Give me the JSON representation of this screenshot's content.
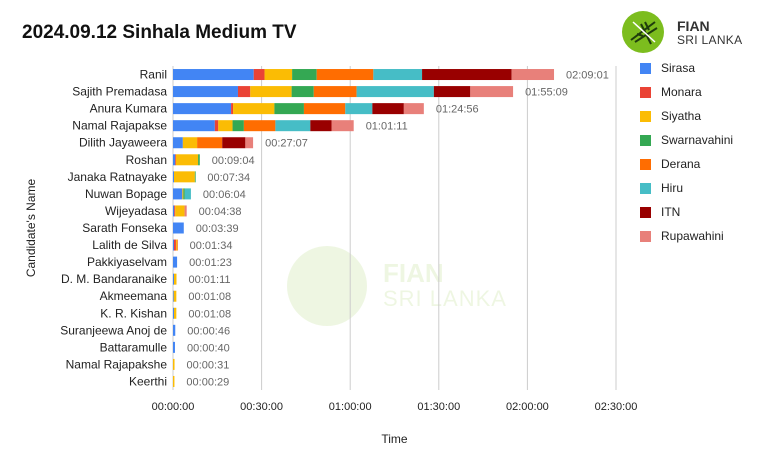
{
  "title": "2024.09.12 Sinhala Medium TV",
  "logo": {
    "line1": "FIAN",
    "line2": "SRI LANKA"
  },
  "watermark": {
    "line1": "FIAN",
    "line2": "SRI LANKA"
  },
  "chart_data": {
    "type": "bar",
    "orientation": "horizontal",
    "stacked": true,
    "title": "2024.09.12 Sinhala Medium TV",
    "xlabel": "Time",
    "ylabel": "Candidate's Name",
    "xlim": [
      0,
      9000
    ],
    "x_unit": "seconds",
    "x_ticks": [
      "00:00:00",
      "00:30:00",
      "01:00:00",
      "01:30:00",
      "02:00:00",
      "02:30:00"
    ],
    "grid": true,
    "legend_position": "right",
    "categories": [
      "Ranil",
      "Sajith Premadasa",
      "Anura Kumara",
      "Namal Rajapakse",
      "Dilith Jayaweera",
      "Roshan",
      "Janaka Ratnayake",
      "Nuwan Bopage",
      "Wijeyadasa",
      "Sarath Fonseka",
      "Lalith de Silva",
      "Pakkiyaselvam",
      "D. M. Bandaranaike",
      "Akmeemana",
      "K. R. Kishan",
      "Suranjeewa Anoj de",
      "Battaramulle",
      "Namal Rajapakshe",
      "Keerthi"
    ],
    "totals": [
      "02:09:01",
      "01:55:09",
      "01:24:56",
      "01:01:11",
      "00:27:07",
      "00:09:04",
      "00:07:34",
      "00:06:04",
      "00:04:38",
      "00:03:39",
      "00:01:34",
      "00:01:23",
      "00:01:11",
      "00:01:08",
      "00:01:08",
      "00:00:46",
      "00:00:40",
      "00:00:31",
      "00:00:29"
    ],
    "series": [
      {
        "name": "Sirasa",
        "color": "#4285f4",
        "values": [
          1640,
          1320,
          1180,
          850,
          200,
          45,
          20,
          190,
          25,
          219,
          20,
          83,
          20,
          15,
          20,
          46,
          40,
          0,
          0
        ]
      },
      {
        "name": "Monara",
        "color": "#ea4335",
        "values": [
          220,
          250,
          40,
          70,
          0,
          15,
          0,
          0,
          20,
          0,
          40,
          0,
          0,
          0,
          0,
          0,
          0,
          0,
          0
        ]
      },
      {
        "name": "Siyatha",
        "color": "#fbbc04",
        "values": [
          560,
          840,
          840,
          290,
          290,
          450,
          424,
          20,
          190,
          0,
          20,
          0,
          51,
          53,
          48,
          0,
          0,
          31,
          29
        ]
      },
      {
        "name": "Swarnavahini",
        "color": "#34a853",
        "values": [
          500,
          450,
          600,
          230,
          0,
          34,
          10,
          30,
          0,
          0,
          0,
          0,
          0,
          0,
          0,
          0,
          0,
          0,
          0
        ]
      },
      {
        "name": "Derana",
        "color": "#ff6d01",
        "values": [
          1150,
          870,
          840,
          640,
          510,
          0,
          0,
          0,
          0,
          0,
          14,
          0,
          0,
          0,
          0,
          0,
          0,
          0,
          0
        ]
      },
      {
        "name": "Hiru",
        "color": "#46bdc6",
        "values": [
          990,
          1570,
          550,
          710,
          0,
          0,
          0,
          124,
          0,
          0,
          0,
          0,
          0,
          0,
          0,
          0,
          0,
          0,
          0
        ]
      },
      {
        "name": "ITN",
        "color": "#990000",
        "values": [
          1820,
          740,
          640,
          430,
          470,
          0,
          0,
          0,
          0,
          0,
          0,
          0,
          0,
          0,
          0,
          0,
          0,
          0,
          0
        ]
      },
      {
        "name": "Rupawahini",
        "color": "#e8807a",
        "values": [
          861,
          869,
          406,
          451,
          157,
          0,
          0,
          0,
          43,
          0,
          0,
          0,
          0,
          0,
          0,
          0,
          0,
          0,
          0
        ]
      }
    ]
  }
}
